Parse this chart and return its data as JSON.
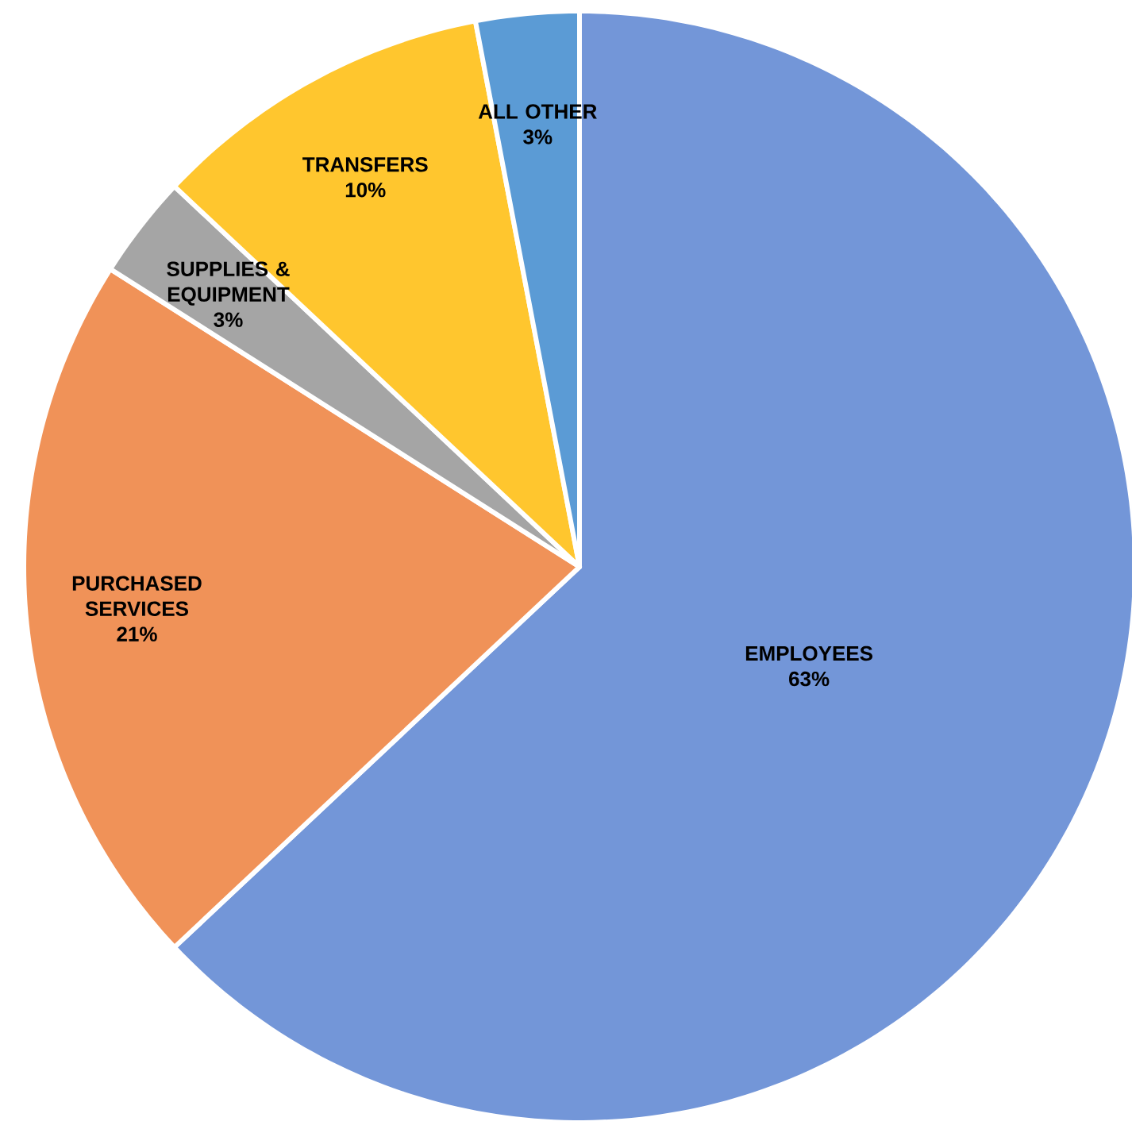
{
  "chart_data": {
    "type": "pie",
    "categories": [
      "EMPLOYEES",
      "PURCHASED SERVICES",
      "SUPPLIES & EQUIPMENT",
      "TRANSFERS",
      "ALL OTHER"
    ],
    "values": [
      63,
      21,
      3,
      10,
      3
    ],
    "value_labels": [
      "63%",
      "21%",
      "3%",
      "10%",
      "3%"
    ],
    "colors": [
      "#7396d8",
      "#f09258",
      "#a5a5a5",
      "#ffc62e",
      "#5b9bd5"
    ]
  }
}
